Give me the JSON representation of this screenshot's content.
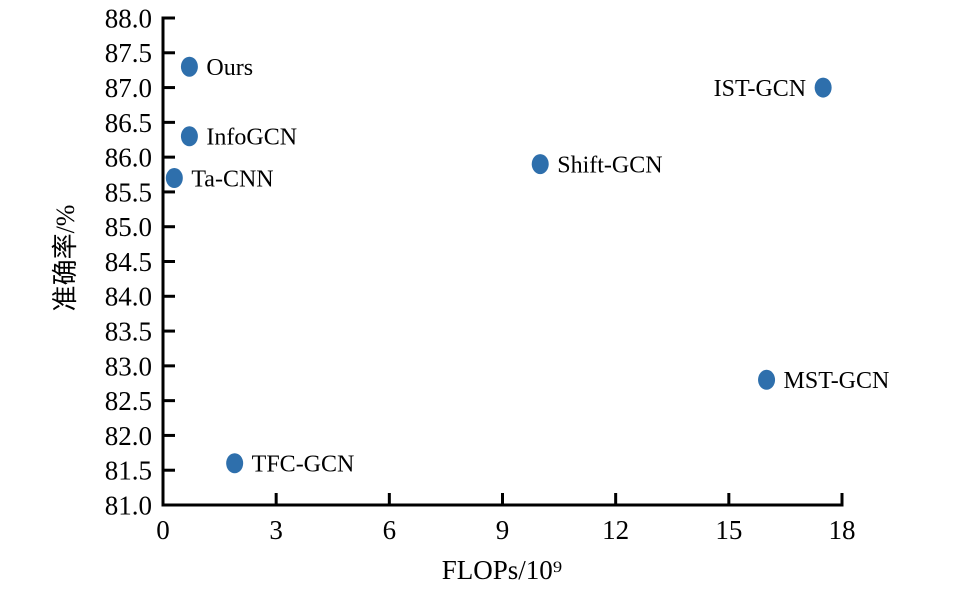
{
  "figure": {
    "background": "#ffffff",
    "axis_color": "#000000"
  },
  "chart_data": {
    "type": "scatter",
    "title": "",
    "xlabel": "FLOPs/10⁹",
    "ylabel": "准确率/%",
    "xlim": [
      0,
      18
    ],
    "ylim": [
      81.0,
      88.0
    ],
    "x_ticks": [
      0,
      3,
      6,
      9,
      12,
      15,
      18
    ],
    "y_ticks": [
      81.0,
      81.5,
      82.0,
      82.5,
      83.0,
      83.5,
      84.0,
      84.5,
      85.0,
      85.5,
      86.0,
      86.5,
      87.0,
      87.5,
      88.0
    ],
    "y_tick_decimals": 1,
    "grid": false,
    "legend": "none",
    "marker_color": "#2e6fac",
    "points": [
      {
        "label": "Ours",
        "x": 0.7,
        "y": 87.3,
        "label_side": "right"
      },
      {
        "label": "IST-GCN",
        "x": 17.5,
        "y": 87.0,
        "label_side": "left"
      },
      {
        "label": "InfoGCN",
        "x": 0.7,
        "y": 86.3,
        "label_side": "right"
      },
      {
        "label": "Shift-GCN",
        "x": 10.0,
        "y": 85.9,
        "label_side": "right"
      },
      {
        "label": "Ta-CNN",
        "x": 0.3,
        "y": 85.7,
        "label_side": "right"
      },
      {
        "label": "MST-GCN",
        "x": 16.0,
        "y": 82.8,
        "label_side": "right"
      },
      {
        "label": "TFC-GCN",
        "x": 1.9,
        "y": 81.6,
        "label_side": "right"
      }
    ]
  }
}
